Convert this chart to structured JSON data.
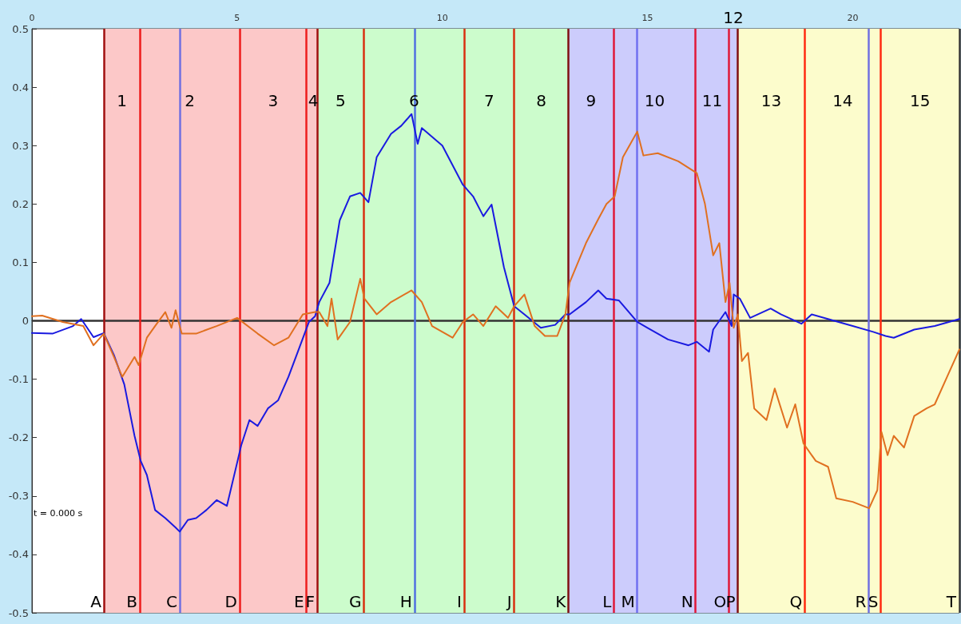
{
  "chart_data": {
    "type": "line",
    "xlim": [
      0,
      22.6
    ],
    "xticks": [
      0,
      5,
      10,
      15,
      20
    ],
    "ylim": [
      -0.5,
      0.5
    ],
    "yticks": [
      -0.5,
      -0.4,
      -0.3,
      -0.2,
      -0.1,
      0,
      0.1,
      0.2,
      0.3,
      0.4,
      0.5
    ],
    "grid": false,
    "marker": "none",
    "line_style": "solid",
    "series": [
      {
        "color": "#1a1ae0",
        "x": [
          0,
          0.5,
          1.0,
          1.2,
          1.5,
          1.75,
          2.0,
          2.25,
          2.5,
          2.65,
          2.8,
          3.0,
          3.25,
          3.5,
          3.6,
          3.8,
          4.0,
          4.25,
          4.5,
          4.75,
          5.0,
          5.1,
          5.3,
          5.5,
          5.75,
          6.0,
          6.25,
          6.5,
          6.75,
          6.9,
          7.0,
          7.25,
          7.5,
          7.75,
          8.0,
          8.2,
          8.4,
          8.75,
          9.0,
          9.25,
          9.4,
          9.5,
          10.0,
          10.5,
          10.75,
          11.0,
          11.2,
          11.5,
          11.75,
          12.0,
          12.4,
          12.75,
          13.0,
          13.1,
          13.5,
          13.8,
          14.0,
          14.3,
          14.75,
          15.0,
          15.5,
          16.0,
          16.2,
          16.5,
          16.6,
          16.9,
          17.05,
          17.1,
          17.25,
          17.5,
          18.0,
          18.25,
          18.75,
          19.0,
          19.5,
          20.0,
          20.5,
          20.8,
          21.0,
          21.5,
          22.0,
          22.6
        ],
        "values": [
          -0.021,
          -0.022,
          -0.009,
          0.003,
          -0.028,
          -0.021,
          -0.059,
          -0.109,
          -0.197,
          -0.24,
          -0.264,
          -0.324,
          -0.338,
          -0.354,
          -0.361,
          -0.341,
          -0.338,
          -0.324,
          -0.307,
          -0.317,
          -0.243,
          -0.213,
          -0.17,
          -0.18,
          -0.15,
          -0.136,
          -0.096,
          -0.049,
          -0.002,
          0.008,
          0.032,
          0.065,
          0.172,
          0.213,
          0.219,
          0.203,
          0.28,
          0.32,
          0.334,
          0.354,
          0.303,
          0.33,
          0.3,
          0.233,
          0.213,
          0.179,
          0.199,
          0.092,
          0.025,
          0.011,
          -0.012,
          -0.007,
          0.011,
          0.011,
          0.032,
          0.052,
          0.038,
          0.035,
          -0.002,
          -0.012,
          -0.032,
          -0.042,
          -0.036,
          -0.053,
          -0.015,
          0.015,
          -0.009,
          0.045,
          0.038,
          0.005,
          0.021,
          0.011,
          -0.005,
          0.011,
          0.001,
          -0.009,
          -0.019,
          -0.026,
          -0.029,
          -0.015,
          -0.009,
          0.003
        ]
      },
      {
        "color": "#e07020",
        "x": [
          0,
          0.25,
          0.75,
          1.25,
          1.5,
          1.75,
          2.0,
          2.2,
          2.5,
          2.6,
          2.8,
          3.0,
          3.25,
          3.4,
          3.5,
          3.65,
          4.0,
          4.5,
          5.0,
          5.5,
          5.9,
          6.25,
          6.6,
          6.9,
          7.0,
          7.2,
          7.3,
          7.45,
          7.75,
          8.0,
          8.1,
          8.4,
          8.75,
          9.25,
          9.5,
          9.75,
          10.25,
          10.5,
          10.75,
          11.0,
          11.3,
          11.6,
          11.75,
          12.0,
          12.25,
          12.5,
          12.8,
          13.0,
          13.1,
          13.5,
          13.8,
          14.0,
          14.2,
          14.4,
          14.75,
          14.9,
          15.25,
          15.75,
          16.2,
          16.4,
          16.6,
          16.75,
          16.9,
          17.0,
          17.1,
          17.2,
          17.3,
          17.45,
          17.6,
          17.9,
          18.1,
          18.4,
          18.6,
          18.8,
          19.1,
          19.4,
          19.6,
          20.0,
          20.4,
          20.6,
          20.7,
          20.85,
          21.0,
          21.25,
          21.5,
          21.8,
          22.0,
          22.3,
          22.6
        ],
        "values": [
          0.008,
          0.009,
          -0.002,
          -0.009,
          -0.042,
          -0.022,
          -0.062,
          -0.096,
          -0.062,
          -0.076,
          -0.029,
          -0.009,
          0.015,
          -0.012,
          0.018,
          -0.022,
          -0.022,
          -0.009,
          0.005,
          -0.022,
          -0.042,
          -0.029,
          0.011,
          0.015,
          0.015,
          -0.009,
          0.038,
          -0.032,
          -0.002,
          0.072,
          0.038,
          0.011,
          0.032,
          0.052,
          0.032,
          -0.009,
          -0.029,
          -0.002,
          0.011,
          -0.009,
          0.025,
          0.005,
          0.025,
          0.045,
          -0.009,
          -0.026,
          -0.026,
          0.011,
          0.065,
          0.133,
          0.174,
          0.2,
          0.213,
          0.28,
          0.324,
          0.283,
          0.287,
          0.273,
          0.253,
          0.2,
          0.112,
          0.133,
          0.032,
          0.065,
          -0.012,
          0.011,
          -0.069,
          -0.055,
          -0.15,
          -0.17,
          -0.116,
          -0.183,
          -0.143,
          -0.21,
          -0.24,
          -0.25,
          -0.304,
          -0.31,
          -0.321,
          -0.29,
          -0.19,
          -0.23,
          -0.197,
          -0.217,
          -0.163,
          -0.15,
          -0.143,
          -0.096,
          -0.049
        ]
      }
    ],
    "bands": [
      {
        "axis": "x",
        "from": 1.75,
        "to": 2.63,
        "label": "1",
        "color": "#fcc8c8"
      },
      {
        "axis": "x",
        "from": 2.63,
        "to": 5.06,
        "label": "2",
        "color": "#fcc8c8"
      },
      {
        "axis": "x",
        "from": 5.06,
        "to": 6.69,
        "label": "3",
        "color": "#fcc8c8"
      },
      {
        "axis": "x",
        "from": 6.69,
        "to": 6.95,
        "label": "4",
        "color": "#fcc8c8"
      },
      {
        "axis": "x",
        "from": 6.95,
        "to": 8.09,
        "label": "5",
        "color": "#ccfccc"
      },
      {
        "axis": "x",
        "from": 8.09,
        "to": 10.53,
        "label": "6",
        "color": "#ccfccc"
      },
      {
        "axis": "x",
        "from": 10.53,
        "to": 11.75,
        "label": "7",
        "color": "#ccfccc"
      },
      {
        "axis": "x",
        "from": 11.75,
        "to": 13.07,
        "label": "8",
        "color": "#ccfccc"
      },
      {
        "axis": "x",
        "from": 13.07,
        "to": 14.18,
        "label": "9",
        "color": "#ccccfc"
      },
      {
        "axis": "x",
        "from": 14.18,
        "to": 16.17,
        "label": "10",
        "color": "#ccccfc"
      },
      {
        "axis": "x",
        "from": 16.17,
        "to": 16.98,
        "label": "11",
        "color": "#ccccfc"
      },
      {
        "axis": "x",
        "from": 16.98,
        "to": 17.2,
        "label": "12",
        "color": "#ccccfc"
      },
      {
        "axis": "x",
        "from": 17.2,
        "to": 18.83,
        "label": "13",
        "color": "#fcfccc"
      },
      {
        "axis": "x",
        "from": 18.83,
        "to": 20.68,
        "label": "14",
        "color": "#fcfccc"
      },
      {
        "axis": "x",
        "from": 20.68,
        "to": 22.6,
        "label": "15",
        "color": "#fcfccc"
      }
    ],
    "ref_lines": [
      {
        "axis": "y",
        "value": 0,
        "color": "#333333"
      },
      {
        "axis": "x",
        "value": 1.75,
        "label": "A",
        "color": "#a01010"
      },
      {
        "axis": "x",
        "value": 2.63,
        "label": "B",
        "color": "#ee1c1c"
      },
      {
        "axis": "x",
        "value": 3.6,
        "label": "C",
        "color": "#7070e0"
      },
      {
        "axis": "x",
        "value": 5.06,
        "label": "D",
        "color": "#ee1c1c"
      },
      {
        "axis": "x",
        "value": 6.69,
        "label": "E",
        "color": "#ee1c1c"
      },
      {
        "axis": "x",
        "value": 6.95,
        "label": "F",
        "color": "#a01010"
      },
      {
        "axis": "x",
        "value": 8.09,
        "label": "G",
        "color": "#d83010"
      },
      {
        "axis": "x",
        "value": 9.32,
        "label": "H",
        "color": "#5070e0"
      },
      {
        "axis": "x",
        "value": 10.53,
        "label": "I",
        "color": "#d83010"
      },
      {
        "axis": "x",
        "value": 11.75,
        "label": "J",
        "color": "#d83010"
      },
      {
        "axis": "x",
        "value": 13.07,
        "label": "K",
        "color": "#801010"
      },
      {
        "axis": "x",
        "value": 14.18,
        "label": "L",
        "color": "#e01838"
      },
      {
        "axis": "x",
        "value": 14.75,
        "label": "M",
        "color": "#7070f0"
      },
      {
        "axis": "x",
        "value": 16.17,
        "label": "N",
        "color": "#e01838"
      },
      {
        "axis": "x",
        "value": 16.98,
        "label": "O",
        "color": "#e01838"
      },
      {
        "axis": "x",
        "value": 17.2,
        "label": "P",
        "color": "#801010"
      },
      {
        "axis": "x",
        "value": 18.83,
        "label": "Q",
        "color": "#ff2a10"
      },
      {
        "axis": "x",
        "value": 20.39,
        "label": "R",
        "color": "#7070e0"
      },
      {
        "axis": "x",
        "value": 20.68,
        "label": "S",
        "color": "#ff2a10"
      },
      {
        "axis": "x",
        "value": 22.6,
        "label": "T",
        "color": "#333333"
      }
    ],
    "annotations": [
      "t = 0.000 s"
    ]
  }
}
